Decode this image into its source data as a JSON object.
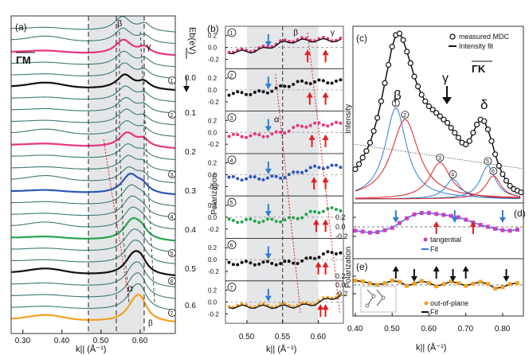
{
  "figure": {
    "panel_a_label": "(a)",
    "panel_b_label": "(b)",
    "panel_c_label": "(c)",
    "panel_d_label": "(d)",
    "panel_e_label": "(e)"
  },
  "chart_data": [
    {
      "id": "a",
      "type": "line",
      "title": "",
      "direction_label": "ΓM",
      "xlabel": "k|| (Å⁻¹)",
      "ylabel": "Eb(eV)",
      "xlim": [
        0.27,
        0.69
      ],
      "x_ticks": [
        "0.30",
        "0.40",
        "0.50",
        "0.60"
      ],
      "energy_ticks": [
        "0.0",
        "0.1",
        "0.2",
        "0.3",
        "0.4",
        "0.5",
        "0.6"
      ],
      "band_labels": [
        "β",
        "γ",
        "α",
        "β"
      ],
      "marked_curves": [
        "1",
        "2",
        "3",
        "4",
        "5",
        "6",
        "7"
      ],
      "curve_count": 26,
      "shaded_region": [
        0.475,
        0.625
      ],
      "dashed_lines": [
        0.475,
        0.55,
        0.625
      ],
      "colors": {
        "default": "#3d7a76",
        "c1": "#e8357f",
        "c2": "#111111",
        "c3": "#e8357f",
        "c4": "#2d56b5",
        "c5": "#27a552",
        "c6": "#111111",
        "c7": "#f5a020"
      }
    },
    {
      "id": "b",
      "type": "line",
      "title": "",
      "xlabel": "k|| (Å⁻¹)",
      "ylabel": "Polarization",
      "xlim": [
        0.47,
        0.635
      ],
      "x_ticks": [
        "0.50",
        "0.55",
        "0.60"
      ],
      "y_ticks": [
        "0.2",
        "0.0",
        "-0.2"
      ],
      "ylim": [
        -0.3,
        0.3
      ],
      "rows": [
        {
          "label": "1",
          "color": "#e8357f",
          "band_labels": [
            "β",
            "γ"
          ]
        },
        {
          "label": "2",
          "color": "#111111"
        },
        {
          "label": "3",
          "color": "#e8357f",
          "band_labels": [
            "α"
          ]
        },
        {
          "label": "4",
          "color": "#2d56b5"
        },
        {
          "label": "5",
          "color": "#27a552"
        },
        {
          "label": "6",
          "color": "#111111"
        },
        {
          "label": "7",
          "color": "#f5a020"
        }
      ]
    },
    {
      "id": "c",
      "type": "scatter",
      "title": "",
      "xlabel": "",
      "ylabel": "Intensity",
      "direction_label": "ΓK",
      "legend": [
        "measured MDC",
        "Intensity fit"
      ],
      "peak_labels": [
        "β",
        "γ",
        "δ"
      ],
      "component_labels": [
        "1",
        "2",
        "3",
        "4",
        "5",
        "6"
      ],
      "x": [
        0.4,
        0.41,
        0.42,
        0.43,
        0.44,
        0.45,
        0.46,
        0.47,
        0.48,
        0.49,
        0.5,
        0.51,
        0.52,
        0.53,
        0.54,
        0.55,
        0.56,
        0.57,
        0.58,
        0.59,
        0.6,
        0.61,
        0.62,
        0.63,
        0.64,
        0.65,
        0.66,
        0.67,
        0.68,
        0.69,
        0.7,
        0.71,
        0.72,
        0.73,
        0.74,
        0.75,
        0.76,
        0.77,
        0.78,
        0.79,
        0.8,
        0.81,
        0.82,
        0.83,
        0.84,
        0.85
      ],
      "y": [
        0.18,
        0.21,
        0.25,
        0.29,
        0.34,
        0.41,
        0.49,
        0.59,
        0.7,
        0.81,
        0.92,
        0.99,
        1.0,
        0.96,
        0.89,
        0.82,
        0.74,
        0.68,
        0.63,
        0.59,
        0.56,
        0.54,
        0.52,
        0.5,
        0.48,
        0.46,
        0.43,
        0.4,
        0.37,
        0.34,
        0.33,
        0.35,
        0.4,
        0.45,
        0.48,
        0.47,
        0.42,
        0.35,
        0.27,
        0.2,
        0.15,
        0.11,
        0.08,
        0.06,
        0.05,
        0.04
      ]
    },
    {
      "id": "d",
      "type": "scatter",
      "title": "",
      "ylabel": "Polarization",
      "legend": [
        "tangential",
        "Fit"
      ],
      "ylim": [
        -0.25,
        0.35
      ],
      "y_ticks": [
        "0.2",
        "0.0",
        "-0.2"
      ],
      "x": [
        0.4,
        0.42,
        0.44,
        0.46,
        0.48,
        0.5,
        0.52,
        0.54,
        0.56,
        0.58,
        0.6,
        0.62,
        0.64,
        0.66,
        0.68,
        0.7,
        0.72,
        0.74,
        0.76,
        0.78,
        0.8,
        0.82,
        0.84
      ],
      "y": [
        -0.08,
        -0.1,
        -0.12,
        -0.11,
        -0.07,
        -0.02,
        0.08,
        0.18,
        0.26,
        0.29,
        0.29,
        0.27,
        0.25,
        0.23,
        0.2,
        0.15,
        0.09,
        0.04,
        0.0,
        -0.04,
        -0.07,
        -0.08,
        -0.06
      ]
    },
    {
      "id": "e",
      "type": "scatter",
      "title": "",
      "xlabel": "k|| (Å⁻¹)",
      "legend": [
        "out-of-plane",
        "Fit"
      ],
      "ylim": [
        -0.3,
        0.3
      ],
      "y_ticks": [
        "0.2",
        "0.0",
        "-0.2"
      ],
      "x_ticks": [
        "0.40",
        "0.50",
        "0.60",
        "0.70",
        "0.80"
      ],
      "x": [
        0.4,
        0.42,
        0.44,
        0.46,
        0.48,
        0.5,
        0.52,
        0.54,
        0.56,
        0.58,
        0.6,
        0.62,
        0.64,
        0.66,
        0.68,
        0.7,
        0.72,
        0.74,
        0.76,
        0.78,
        0.8,
        0.82,
        0.84
      ],
      "y": [
        0.1,
        0.08,
        0.04,
        0.0,
        0.04,
        0.1,
        0.07,
        -0.02,
        0.03,
        0.09,
        0.05,
        -0.03,
        0.02,
        0.08,
        0.04,
        -0.02,
        0.03,
        0.07,
        0.02,
        -0.08,
        -0.05,
        0.02,
        0.04
      ]
    }
  ]
}
